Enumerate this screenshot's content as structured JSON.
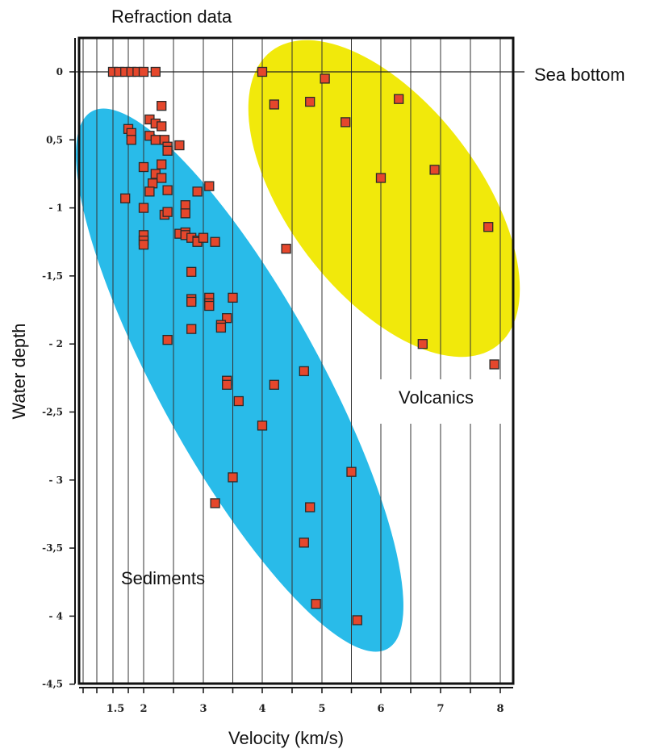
{
  "chart_data": {
    "type": "scatter",
    "title": "Refraction data",
    "xlabel": "Velocity (km/s)",
    "ylabel": "Water depth",
    "xlim": [
      0.5,
      8.3
    ],
    "ylim": [
      -4.5,
      0.2
    ],
    "x_ticks": [
      {
        "value": 1.5,
        "label": "1.5"
      },
      {
        "value": 2,
        "label": "2"
      },
      {
        "value": 3,
        "label": "3"
      },
      {
        "value": 4,
        "label": "4"
      },
      {
        "value": 5,
        "label": "5"
      },
      {
        "value": 6,
        "label": "6"
      },
      {
        "value": 7,
        "label": "7"
      },
      {
        "value": 8,
        "label": "8"
      }
    ],
    "x_ticks_unlabeled": [
      0.5,
      1.0,
      1.75,
      2.5,
      3.5,
      4.5,
      5.5,
      6.5,
      7.5
    ],
    "y_ticks": [
      {
        "value": 0,
        "label": "0"
      },
      {
        "value": -0.5,
        "label": "0,5"
      },
      {
        "value": -1,
        "label": "- 1"
      },
      {
        "value": -1.5,
        "label": "-1,5"
      },
      {
        "value": -2,
        "label": "- 2"
      },
      {
        "value": -2.5,
        "label": "-2,5"
      },
      {
        "value": -3,
        "label": "- 3"
      },
      {
        "value": -3.5,
        "label": "-3,5"
      },
      {
        "value": -4,
        "label": "- 4"
      },
      {
        "value": -4.5,
        "label": "-4,5"
      }
    ],
    "grid": "vertical",
    "reference_line": {
      "y": 0,
      "label": "Sea bottom"
    },
    "regions": [
      {
        "name": "Sediments",
        "color": "#29bbe9"
      },
      {
        "name": "Volcanics",
        "color": "#f1e90b"
      }
    ],
    "marker_color": "#e5472c",
    "points": [
      {
        "x": 1.5,
        "y": 0
      },
      {
        "x": 1.6,
        "y": 0
      },
      {
        "x": 1.7,
        "y": 0
      },
      {
        "x": 1.8,
        "y": 0
      },
      {
        "x": 1.9,
        "y": 0
      },
      {
        "x": 2.0,
        "y": 0
      },
      {
        "x": 2.2,
        "y": 0
      },
      {
        "x": 1.75,
        "y": -0.42
      },
      {
        "x": 1.8,
        "y": -0.45
      },
      {
        "x": 1.8,
        "y": -0.5
      },
      {
        "x": 2.1,
        "y": -0.35
      },
      {
        "x": 2.2,
        "y": -0.38
      },
      {
        "x": 2.3,
        "y": -0.4
      },
      {
        "x": 2.3,
        "y": -0.25
      },
      {
        "x": 2.1,
        "y": -0.47
      },
      {
        "x": 2.2,
        "y": -0.5
      },
      {
        "x": 2.35,
        "y": -0.5
      },
      {
        "x": 2.4,
        "y": -0.55
      },
      {
        "x": 2.4,
        "y": -0.58
      },
      {
        "x": 2.6,
        "y": -0.54
      },
      {
        "x": 2.3,
        "y": -0.68
      },
      {
        "x": 2.0,
        "y": -0.7
      },
      {
        "x": 2.2,
        "y": -0.75
      },
      {
        "x": 2.3,
        "y": -0.78
      },
      {
        "x": 2.15,
        "y": -0.82
      },
      {
        "x": 2.1,
        "y": -0.88
      },
      {
        "x": 2.4,
        "y": -0.87
      },
      {
        "x": 1.7,
        "y": -0.93
      },
      {
        "x": 2.0,
        "y": -1.0
      },
      {
        "x": 2.35,
        "y": -1.05
      },
      {
        "x": 2.4,
        "y": -1.03
      },
      {
        "x": 2.7,
        "y": -0.98
      },
      {
        "x": 2.7,
        "y": -1.04
      },
      {
        "x": 2.9,
        "y": -0.88
      },
      {
        "x": 3.1,
        "y": -0.84
      },
      {
        "x": 2.0,
        "y": -1.2
      },
      {
        "x": 2.0,
        "y": -1.24
      },
      {
        "x": 2.0,
        "y": -1.27
      },
      {
        "x": 2.6,
        "y": -1.19
      },
      {
        "x": 2.7,
        "y": -1.18
      },
      {
        "x": 2.7,
        "y": -1.2
      },
      {
        "x": 2.8,
        "y": -1.22
      },
      {
        "x": 2.9,
        "y": -1.24
      },
      {
        "x": 2.9,
        "y": -1.25
      },
      {
        "x": 3.0,
        "y": -1.22
      },
      {
        "x": 3.2,
        "y": -1.25
      },
      {
        "x": 2.8,
        "y": -1.47
      },
      {
        "x": 2.8,
        "y": -1.67
      },
      {
        "x": 2.8,
        "y": -1.69
      },
      {
        "x": 3.1,
        "y": -1.66
      },
      {
        "x": 3.1,
        "y": -1.7
      },
      {
        "x": 3.1,
        "y": -1.72
      },
      {
        "x": 3.5,
        "y": -1.66
      },
      {
        "x": 3.4,
        "y": -1.81
      },
      {
        "x": 3.3,
        "y": -1.86
      },
      {
        "x": 3.3,
        "y": -1.88
      },
      {
        "x": 2.8,
        "y": -1.89
      },
      {
        "x": 2.4,
        "y": -1.97
      },
      {
        "x": 3.4,
        "y": -2.27
      },
      {
        "x": 3.4,
        "y": -2.3
      },
      {
        "x": 3.6,
        "y": -2.42
      },
      {
        "x": 4.2,
        "y": -2.3
      },
      {
        "x": 4.0,
        "y": -2.6
      },
      {
        "x": 3.5,
        "y": -2.98
      },
      {
        "x": 3.2,
        "y": -3.17
      },
      {
        "x": 4.7,
        "y": -2.2
      },
      {
        "x": 4.4,
        "y": -1.3
      },
      {
        "x": 5.5,
        "y": -2.94
      },
      {
        "x": 4.8,
        "y": -3.2
      },
      {
        "x": 4.7,
        "y": -3.46
      },
      {
        "x": 4.9,
        "y": -3.91
      },
      {
        "x": 5.6,
        "y": -4.03
      },
      {
        "x": 4.0,
        "y": 0
      },
      {
        "x": 5.05,
        "y": -0.05
      },
      {
        "x": 4.2,
        "y": -0.24
      },
      {
        "x": 4.8,
        "y": -0.22
      },
      {
        "x": 5.4,
        "y": -0.37
      },
      {
        "x": 6.3,
        "y": -0.2
      },
      {
        "x": 6.0,
        "y": -0.78
      },
      {
        "x": 6.9,
        "y": -0.72
      },
      {
        "x": 7.8,
        "y": -1.14
      },
      {
        "x": 6.7,
        "y": -2.0
      },
      {
        "x": 7.9,
        "y": -2.15
      }
    ]
  }
}
